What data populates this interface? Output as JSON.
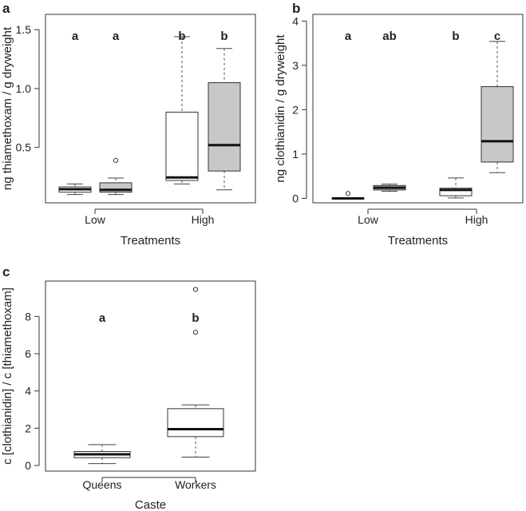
{
  "chart_data": [
    {
      "panel": "a",
      "type": "boxplot",
      "xlabel": "Treatments",
      "ylabel": "ng thiamethoxam / g dryweight",
      "ylim": [
        0.03,
        1.63
      ],
      "yticks": [
        0.5,
        1.0,
        1.5
      ],
      "ytick_labels": [
        "0.5",
        "1.0",
        "1.5"
      ],
      "categories": [
        "Low",
        "High"
      ],
      "boxes": [
        {
          "group": "Low",
          "fill": "#ffffff",
          "min": 0.1,
          "q1": 0.12,
          "median": 0.145,
          "q3": 0.165,
          "max": 0.19,
          "outliers": [],
          "letter": "a"
        },
        {
          "group": "Low",
          "fill": "#c8c8c8",
          "min": 0.1,
          "q1": 0.12,
          "median": 0.14,
          "q3": 0.2,
          "max": 0.24,
          "outliers": [
            0.39
          ],
          "letter": "a"
        },
        {
          "group": "High",
          "fill": "#ffffff",
          "min": 0.19,
          "q1": 0.22,
          "median": 0.245,
          "q3": 0.8,
          "max": 1.44,
          "outliers": [],
          "letter": "b"
        },
        {
          "group": "High",
          "fill": "#c8c8c8",
          "min": 0.14,
          "q1": 0.3,
          "median": 0.52,
          "q3": 1.05,
          "max": 1.34,
          "outliers": [],
          "letter": "b"
        }
      ]
    },
    {
      "panel": "b",
      "type": "boxplot",
      "xlabel": "Treatments",
      "ylabel": "ng clothianidin / g dryweight",
      "ylim": [
        -0.1,
        4.15
      ],
      "yticks": [
        0,
        1,
        2,
        3,
        4
      ],
      "ytick_labels": [
        "0",
        "1",
        "2",
        "3",
        "4"
      ],
      "categories": [
        "Low",
        "High"
      ],
      "boxes": [
        {
          "group": "Low",
          "fill": "#ffffff",
          "min": 0.0,
          "q1": 0.0,
          "median": 0.0,
          "q3": 0.01,
          "max": 0.01,
          "outliers": [
            0.11
          ],
          "letter": "a"
        },
        {
          "group": "Low",
          "fill": "#c8c8c8",
          "min": 0.16,
          "q1": 0.19,
          "median": 0.24,
          "q3": 0.29,
          "max": 0.32,
          "outliers": [],
          "letter": "ab"
        },
        {
          "group": "High",
          "fill": "#ffffff",
          "min": 0.01,
          "q1": 0.06,
          "median": 0.19,
          "q3": 0.23,
          "max": 0.46,
          "outliers": [],
          "letter": "b"
        },
        {
          "group": "High",
          "fill": "#c8c8c8",
          "min": 0.58,
          "q1": 0.82,
          "median": 1.29,
          "q3": 2.52,
          "max": 3.54,
          "outliers": [],
          "letter": "c"
        }
      ]
    },
    {
      "panel": "c",
      "type": "boxplot",
      "xlabel": "Caste",
      "ylabel": "c [clothianidin] / c [thiamethoxam]",
      "ylim": [
        -0.3,
        9.9
      ],
      "yticks": [
        0,
        2,
        4,
        6,
        8
      ],
      "ytick_labels": [
        "0",
        "2",
        "4",
        "6",
        "8"
      ],
      "categories": [
        "Queens",
        "Workers"
      ],
      "boxes": [
        {
          "group": "Queens",
          "fill": "#ffffff",
          "min": 0.1,
          "q1": 0.42,
          "median": 0.6,
          "q3": 0.75,
          "max": 1.12,
          "outliers": [],
          "letter": "a"
        },
        {
          "group": "Workers",
          "fill": "#ffffff",
          "min": 0.45,
          "q1": 1.55,
          "median": 1.95,
          "q3": 3.05,
          "max": 3.25,
          "outliers": [
            7.15,
            9.45
          ],
          "letter": "b"
        }
      ]
    }
  ]
}
